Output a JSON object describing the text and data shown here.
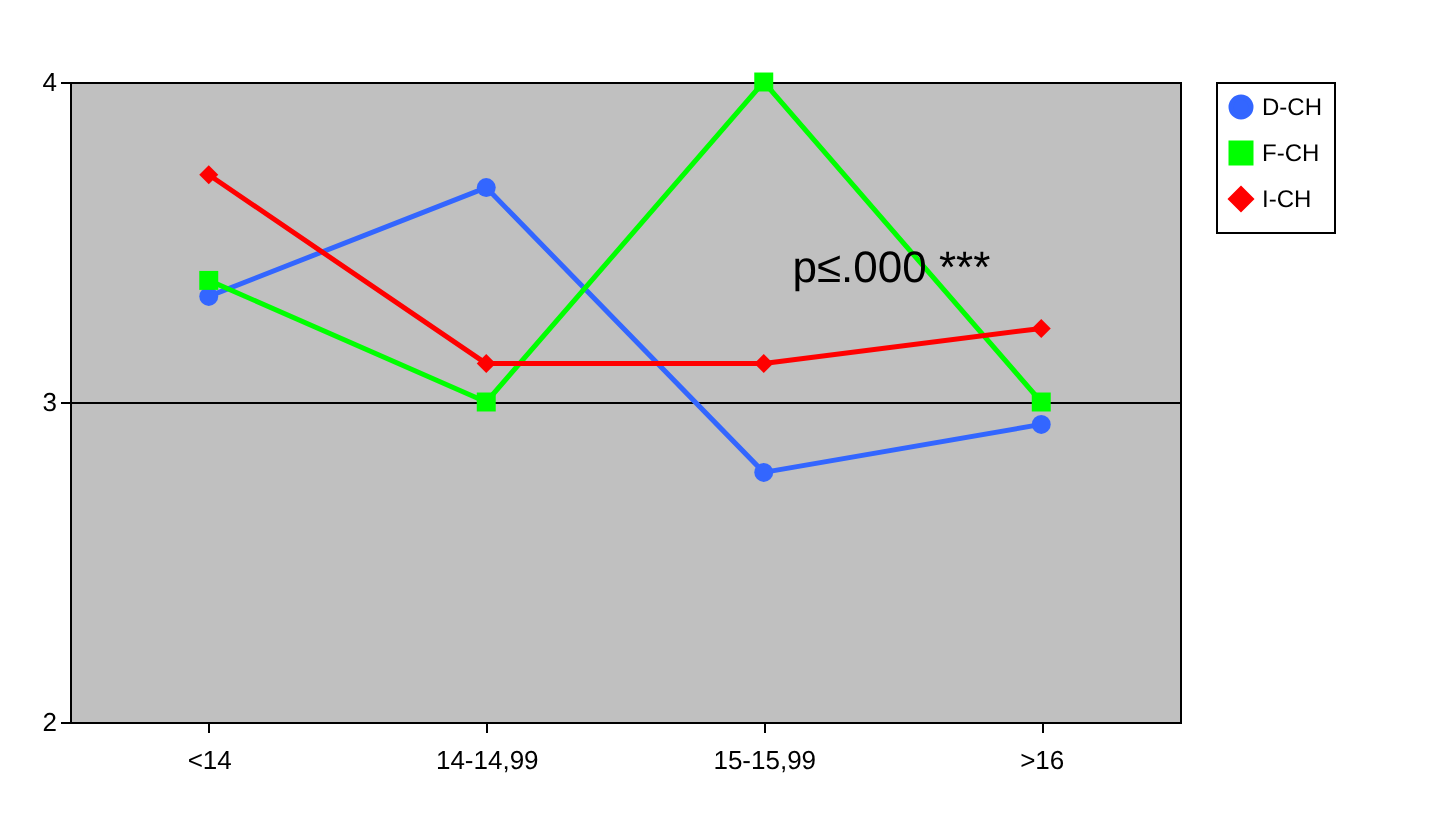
{
  "chart_data": {
    "type": "line",
    "categories": [
      "<14",
      "14-14,99",
      "15-15,99",
      ">16"
    ],
    "series": [
      {
        "name": "D-CH",
        "color": "#3366ff",
        "marker": "circle",
        "values": [
          3.33,
          3.67,
          2.78,
          2.93
        ]
      },
      {
        "name": "F-CH",
        "color": "#00ff00",
        "marker": "square",
        "values": [
          3.38,
          3.0,
          4.0,
          3.0
        ]
      },
      {
        "name": "I-CH",
        "color": "#ff0000",
        "marker": "diamond",
        "values": [
          3.71,
          3.12,
          3.12,
          3.23
        ]
      }
    ],
    "ylim": [
      2,
      4
    ],
    "yticks": [
      2,
      3,
      4
    ],
    "grid": "y",
    "legend": "right",
    "line_style": "solid",
    "annotations": [
      "p≤.000 ***"
    ]
  }
}
